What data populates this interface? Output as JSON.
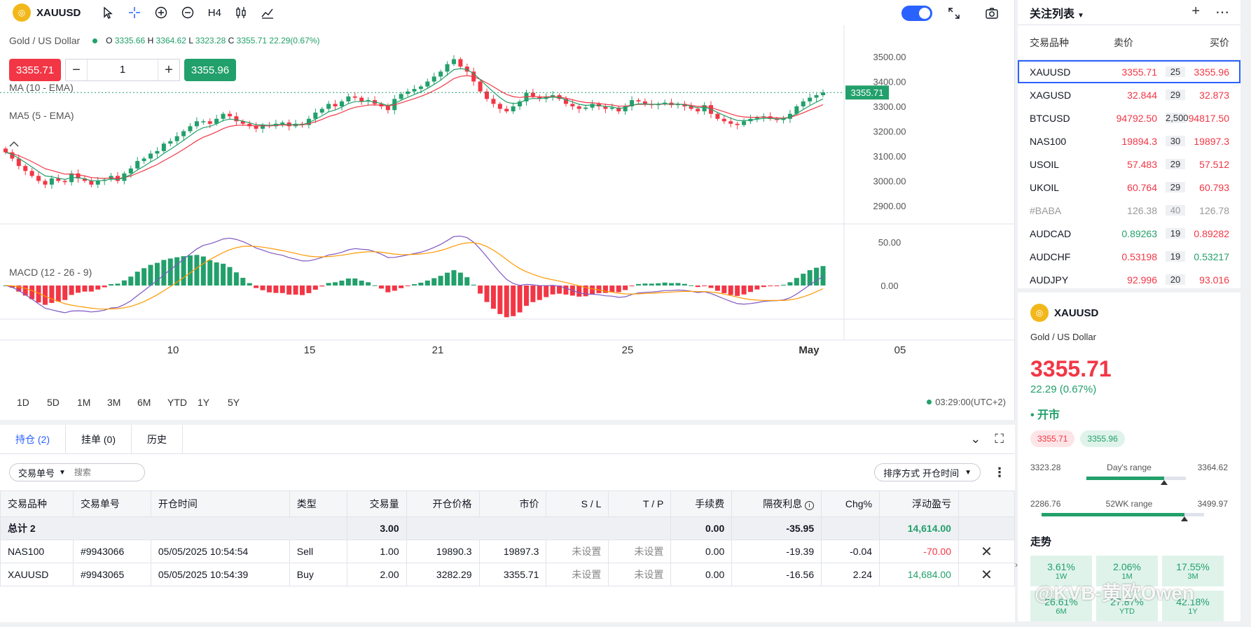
{
  "toolbar": {
    "symbol": "XAUUSD",
    "timeframe": "H4"
  },
  "legend": {
    "name": "Gold / US Dollar",
    "o_label": "O",
    "o": "3335.66",
    "h_label": "H",
    "h": "3364.62",
    "l_label": "L",
    "l": "3323.28",
    "c_label": "C",
    "c": "3355.71",
    "change": "22.29(0.67%)"
  },
  "trade": {
    "sell": "3355.71",
    "qty": "1",
    "buy": "3355.96"
  },
  "indicators": {
    "ma10": "MA (10 - EMA)",
    "ma5": "MA5 (5 - EMA)",
    "macd": "MACD (12 - 26 - 9)"
  },
  "chart_data": {
    "type": "candlestick",
    "price_axis": [
      "3500.00",
      "3400.00",
      "3300.00",
      "3200.00",
      "3100.00",
      "3000.00",
      "2900.00"
    ],
    "last_price_label": "3355.71",
    "macd_axis": [
      "50.00",
      "0.00"
    ],
    "x_ticks": [
      "10",
      "15",
      "21",
      "25",
      "May",
      "05"
    ],
    "closes": [
      3115,
      3090,
      3060,
      3040,
      3020,
      3000,
      2985,
      3010,
      3000,
      2995,
      3030,
      3010,
      3000,
      2985,
      3000,
      3005,
      3020,
      3000,
      3030,
      3050,
      3080,
      3090,
      3110,
      3120,
      3150,
      3160,
      3180,
      3200,
      3220,
      3240,
      3240,
      3230,
      3250,
      3270,
      3260,
      3240,
      3230,
      3220,
      3210,
      3225,
      3220,
      3230,
      3235,
      3220,
      3230,
      3225,
      3250,
      3275,
      3290,
      3310,
      3300,
      3320,
      3340,
      3335,
      3320,
      3325,
      3310,
      3300,
      3285,
      3330,
      3350,
      3360,
      3370,
      3380,
      3400,
      3420,
      3440,
      3470,
      3490,
      3460,
      3440,
      3400,
      3360,
      3330,
      3310,
      3290,
      3280,
      3300,
      3320,
      3355,
      3340,
      3330,
      3340,
      3345,
      3330,
      3310,
      3300,
      3290,
      3295,
      3310,
      3300,
      3290,
      3295,
      3280,
      3300,
      3325,
      3320,
      3310,
      3305,
      3310,
      3315,
      3305,
      3310,
      3300,
      3290,
      3280,
      3305,
      3270,
      3250,
      3240,
      3230,
      3225,
      3240,
      3250,
      3255,
      3260,
      3250,
      3245,
      3250,
      3270,
      3300,
      3320,
      3335,
      3345,
      3356
    ]
  },
  "timeframes": [
    "1D",
    "5D",
    "1M",
    "3M",
    "6M",
    "YTD",
    "1Y",
    "5Y"
  ],
  "clock": "03:29:00(UTC+2)",
  "positions": {
    "tabs": [
      {
        "label": "持仓 (2)"
      },
      {
        "label": "挂单 (0)"
      },
      {
        "label": "历史"
      }
    ],
    "filter_label": "交易单号",
    "search_placeholder": "搜索",
    "sort_label": "排序方式",
    "sort_value": "开仓时间",
    "columns": [
      "交易品种",
      "交易单号",
      "开仓时间",
      "类型",
      "交易量",
      "开仓价格",
      "市价",
      "S / L",
      "T / P",
      "手续费",
      "隔夜利息",
      "Chg%",
      "浮动盈亏"
    ],
    "total": {
      "label": "总计 2",
      "volume": "3.00",
      "fee": "0.00",
      "swap": "-35.95",
      "pl": "14,614.00"
    },
    "rows": [
      {
        "symbol": "NAS100",
        "ticket": "#9943066",
        "time": "05/05/2025 10:54:54",
        "type": "Sell",
        "volume": "1.00",
        "open": "19890.3",
        "market": "19897.3",
        "sl": "未设置",
        "tp": "未设置",
        "fee": "0.00",
        "swap": "-19.39",
        "chg": "-0.04",
        "pl": "-70.00"
      },
      {
        "symbol": "XAUUSD",
        "ticket": "#9943065",
        "time": "05/05/2025 10:54:39",
        "type": "Buy",
        "volume": "2.00",
        "open": "3282.29",
        "market": "3355.71",
        "sl": "未设置",
        "tp": "未设置",
        "fee": "0.00",
        "swap": "-16.56",
        "chg": "2.24",
        "pl": "14,684.00"
      }
    ]
  },
  "watchlist": {
    "title": "关注列表",
    "col_symbol": "交易品种",
    "col_bid": "卖价",
    "col_ask": "买价",
    "rows": [
      {
        "symbol": "XAUUSD",
        "bid": "3355.71",
        "spread": "25",
        "ask": "3355.96"
      },
      {
        "symbol": "XAGUSD",
        "bid": "32.844",
        "spread": "29",
        "ask": "32.873"
      },
      {
        "symbol": "BTCUSD",
        "bid": "94792.50",
        "spread": "2,500",
        "ask": "94817.50"
      },
      {
        "symbol": "NAS100",
        "bid": "19894.3",
        "spread": "30",
        "ask": "19897.3"
      },
      {
        "symbol": "USOIL",
        "bid": "57.483",
        "spread": "29",
        "ask": "57.512"
      },
      {
        "symbol": "UKOIL",
        "bid": "60.764",
        "spread": "29",
        "ask": "60.793"
      },
      {
        "symbol": "#BABA",
        "bid": "126.38",
        "spread": "40",
        "ask": "126.78"
      },
      {
        "symbol": "AUDCAD",
        "bid": "0.89263",
        "spread": "19",
        "ask": "0.89282"
      },
      {
        "symbol": "AUDCHF",
        "bid": "0.53198",
        "spread": "19",
        "ask": "0.53217"
      },
      {
        "symbol": "AUDJPY",
        "bid": "92.996",
        "spread": "20",
        "ask": "93.016"
      }
    ]
  },
  "detail": {
    "symbol": "XAUUSD",
    "description": "Gold / US Dollar",
    "price": "3355.71",
    "change": "22.29 (0.67%)",
    "status": "开市",
    "sell": "3355.71",
    "buy": "3355.96",
    "day_low": "3323.28",
    "day_label": "Day's range",
    "day_high": "3364.62",
    "day_fill": 0.78,
    "wk_low": "2286.76",
    "wk_label": "52WK range",
    "wk_high": "3499.97",
    "wk_fill": 0.88,
    "trend_title": "走势",
    "trend": [
      {
        "value": "3.61%",
        "period": "1W"
      },
      {
        "value": "2.06%",
        "period": "1M"
      },
      {
        "value": "17.55%",
        "period": "3M"
      },
      {
        "value": "26.61%",
        "period": "6M"
      },
      {
        "value": "27.87%",
        "period": "YTD"
      },
      {
        "value": "42.18%",
        "period": "1Y"
      }
    ]
  },
  "watermark": "@KVB-黄欧Owen",
  "colors": {
    "up": "#22a06b",
    "down": "#f23645",
    "accent": "#2962ff"
  }
}
